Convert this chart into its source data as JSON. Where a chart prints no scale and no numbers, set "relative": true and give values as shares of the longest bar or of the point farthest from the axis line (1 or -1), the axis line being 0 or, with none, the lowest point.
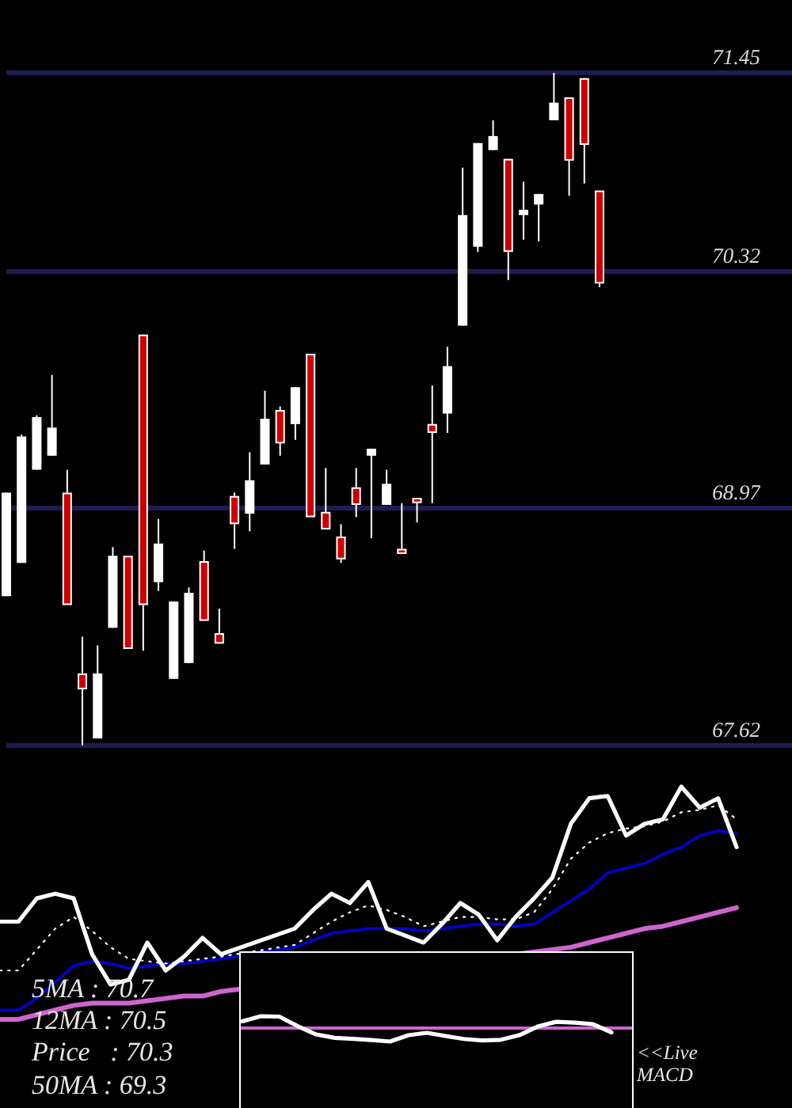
{
  "chart_data": [
    {
      "type": "candlestick",
      "categories": [
        null,
        null,
        null,
        null,
        null,
        null,
        null,
        null,
        null,
        null,
        null,
        null,
        null,
        null,
        null,
        null,
        null,
        null,
        null,
        null,
        null,
        null,
        null,
        null,
        null,
        null,
        null,
        null,
        null,
        null,
        null,
        null,
        null,
        null,
        null,
        null,
        null,
        null,
        null,
        null
      ],
      "ohlc": [
        [
          68.47,
          69.06,
          68.47,
          69.06
        ],
        [
          68.66,
          69.39,
          68.66,
          69.38
        ],
        [
          69.19,
          69.5,
          69.19,
          69.49
        ],
        [
          69.27,
          69.73,
          69.27,
          69.43
        ],
        [
          69.06,
          69.19,
          68.42,
          68.42
        ],
        [
          68.03,
          68.24,
          67.62,
          67.94
        ],
        [
          67.66,
          68.19,
          67.66,
          68.03
        ],
        [
          68.29,
          68.75,
          68.29,
          68.7
        ],
        [
          68.7,
          68.7,
          68.17,
          68.17
        ],
        [
          69.96,
          69.96,
          68.16,
          68.42
        ],
        [
          68.55,
          68.91,
          68.5,
          68.77
        ],
        [
          68.0,
          68.44,
          68.0,
          68.44
        ],
        [
          68.09,
          68.52,
          68.09,
          68.49
        ],
        [
          68.67,
          68.73,
          68.33,
          68.33
        ],
        [
          68.26,
          68.4,
          68.2,
          68.2
        ],
        [
          69.04,
          69.06,
          68.74,
          68.88
        ],
        [
          68.94,
          69.29,
          68.84,
          69.13
        ],
        [
          69.22,
          69.64,
          69.22,
          69.48
        ],
        [
          69.53,
          69.55,
          69.27,
          69.34
        ],
        [
          69.45,
          69.66,
          69.36,
          69.66
        ],
        [
          69.85,
          69.85,
          68.92,
          68.92
        ],
        [
          68.95,
          69.2,
          68.85,
          68.85
        ],
        [
          68.81,
          68.88,
          68.66,
          68.68
        ],
        [
          69.09,
          69.2,
          68.92,
          68.99
        ],
        [
          69.27,
          69.31,
          68.8,
          69.31
        ],
        [
          68.99,
          69.19,
          68.99,
          69.11
        ],
        [
          68.74,
          69.0,
          68.71,
          68.71
        ],
        [
          69.03,
          69.03,
          68.89,
          69.0
        ],
        [
          69.45,
          69.67,
          69.0,
          69.4
        ],
        [
          69.51,
          69.89,
          69.4,
          69.78
        ],
        [
          70.01,
          70.91,
          70.01,
          70.64
        ],
        [
          70.46,
          71.05,
          70.43,
          71.05
        ],
        [
          71.01,
          71.18,
          71.01,
          71.09
        ],
        [
          70.96,
          70.96,
          70.27,
          70.43
        ],
        [
          70.64,
          70.83,
          70.5,
          70.67
        ],
        [
          70.7,
          70.76,
          70.49,
          70.76
        ],
        [
          71.18,
          71.45,
          71.18,
          71.28
        ],
        [
          71.31,
          71.31,
          70.75,
          70.95
        ],
        [
          71.42,
          71.42,
          70.82,
          71.04
        ],
        [
          70.78,
          70.78,
          70.23,
          70.25
        ]
      ],
      "ylim": [
        67.62,
        71.45
      ],
      "yticks": [
        67.62,
        68.97,
        70.32,
        71.45
      ],
      "grid": "y",
      "tick_labels": "y"
    },
    {
      "type": "line",
      "categories": [
        null,
        null,
        null,
        null,
        null,
        null,
        null,
        null,
        null,
        null,
        null,
        null,
        null,
        null,
        null,
        null,
        null,
        null,
        null,
        null,
        null,
        null,
        null,
        null,
        null,
        null,
        null,
        null,
        null,
        null,
        null,
        null,
        null,
        null,
        null,
        null,
        null,
        null,
        null,
        null,
        null
      ],
      "relative": true,
      "marker": "none",
      "tick_labels": false,
      "series": [
        {
          "color": "#ffffff",
          "values": [
            0.42,
            0.42,
            0.52,
            0.54,
            0.52,
            0.28,
            0.15,
            0.17,
            0.33,
            0.21,
            0.27,
            0.35,
            0.28,
            null,
            null,
            null,
            0.39,
            0.47,
            0.54,
            0.5,
            0.59,
            0.39,
            0.36,
            0.33,
            0.41,
            0.5,
            0.45,
            0.34,
            0.44,
            0.52,
            0.61,
            0.84,
            0.95,
            0.96,
            0.79,
            0.84,
            0.86,
            1,
            0.91,
            0.95,
            0.74
          ]
        },
        {
          "color": "#ffffff",
          "line_style": "dotted",
          "values": [
            0.21,
            0.21,
            0.3,
            0.39,
            0.44,
            0.38,
            0.31,
            0.26,
            0.25,
            0.24,
            0.25,
            0.26,
            0.27,
            null,
            null,
            null,
            0.32,
            0.37,
            0.42,
            0.46,
            0.49,
            0.47,
            0.44,
            0.4,
            0.42,
            0.44,
            0.44,
            0.43,
            0.43,
            0.46,
            0.56,
            0.69,
            0.76,
            0.8,
            0.82,
            0.83,
            0.85,
            0.89,
            0.9,
            0.92,
            0.86
          ]
        },
        {
          "color": "#0000cc",
          "values": [
            0.04,
            0.04,
            0.09,
            0.16,
            0.23,
            0.25,
            0.24,
            0.22,
            0.23,
            0.24,
            0.24,
            0.25,
            0.26,
            null,
            null,
            null,
            0.31,
            0.34,
            0.37,
            0.38,
            0.39,
            0.39,
            0.39,
            0.38,
            0.39,
            0.4,
            0.41,
            0.41,
            0.4,
            0.41,
            0.46,
            0.51,
            0.56,
            0.63,
            0.65,
            0.67,
            0.71,
            0.74,
            0.79,
            0.81,
            0.8
          ]
        },
        {
          "color": "#cc66cc",
          "values": [
            0,
            0,
            0.02,
            0.04,
            0.06,
            0.07,
            0.07,
            0.07,
            0.08,
            0.09,
            0.1,
            0.1,
            0.12,
            null,
            null,
            null,
            null,
            null,
            null,
            null,
            null,
            null,
            null,
            null,
            null,
            null,
            null,
            null,
            null,
            null,
            null,
            0.31,
            0.33,
            0.35,
            0.37,
            0.39,
            0.4,
            0.42,
            0.44,
            0.46,
            0.48
          ]
        }
      ],
      "annotations": [
        "5MA : 70.7",
        "12MA : 70.5",
        "Price   : 70.3",
        "50MA : 69.3"
      ]
    },
    {
      "type": "line",
      "categories": [
        null,
        null,
        null,
        null,
        null,
        null,
        null,
        null,
        null,
        null,
        null,
        null,
        null,
        null,
        null,
        null,
        null,
        null,
        null,
        null,
        null
      ],
      "relative": true,
      "marker": "none",
      "tick_labels": false,
      "series": [
        {
          "color": "#ffffff",
          "values": [
            0.51,
            0.89,
            0.86,
            0.15,
            -0.47,
            -0.73,
            -0.8,
            -0.89,
            -1,
            -0.53,
            -0.35,
            -0.59,
            -0.81,
            -0.92,
            -0.87,
            -0.53,
            0.12,
            0.47,
            0.41,
            0.29,
            -0.32
          ]
        }
      ],
      "ref_lines": [
        {
          "axis": "y",
          "value": 0,
          "color": "#cc66cc"
        }
      ],
      "annotations": [
        "<<Live MACD"
      ]
    }
  ]
}
